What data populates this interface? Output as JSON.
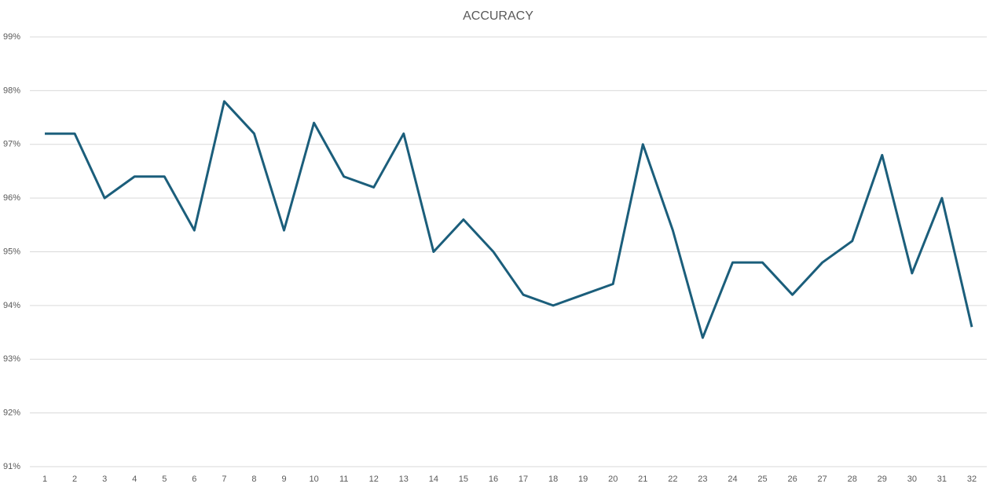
{
  "chart_data": {
    "type": "line",
    "title": "ACCURACY",
    "categories": [
      "1",
      "2",
      "3",
      "4",
      "5",
      "6",
      "7",
      "8",
      "9",
      "10",
      "11",
      "12",
      "13",
      "14",
      "15",
      "16",
      "17",
      "18",
      "19",
      "20",
      "21",
      "22",
      "23",
      "24",
      "25",
      "26",
      "27",
      "28",
      "29",
      "30",
      "31",
      "32"
    ],
    "values": [
      97.2,
      97.2,
      96.0,
      96.4,
      96.4,
      95.4,
      97.8,
      97.2,
      95.4,
      97.4,
      96.4,
      96.2,
      97.2,
      95.0,
      95.6,
      95.0,
      94.2,
      94.0,
      94.2,
      94.4,
      97.0,
      95.4,
      93.4,
      94.8,
      94.8,
      94.2,
      94.8,
      95.2,
      96.8,
      94.6,
      96.0,
      93.6
    ],
    "color": "#1b5e7b",
    "ylim": [
      91,
      99
    ],
    "yticks": [
      {
        "value": 91,
        "label": "91%"
      },
      {
        "value": 92,
        "label": "92%"
      },
      {
        "value": 93,
        "label": "93%"
      },
      {
        "value": 94,
        "label": "94%"
      },
      {
        "value": 95,
        "label": "95%"
      },
      {
        "value": 96,
        "label": "96%"
      },
      {
        "value": 97,
        "label": "97%"
      },
      {
        "value": 98,
        "label": "98%"
      },
      {
        "value": 99,
        "label": "99%"
      }
    ],
    "grid": true
  }
}
